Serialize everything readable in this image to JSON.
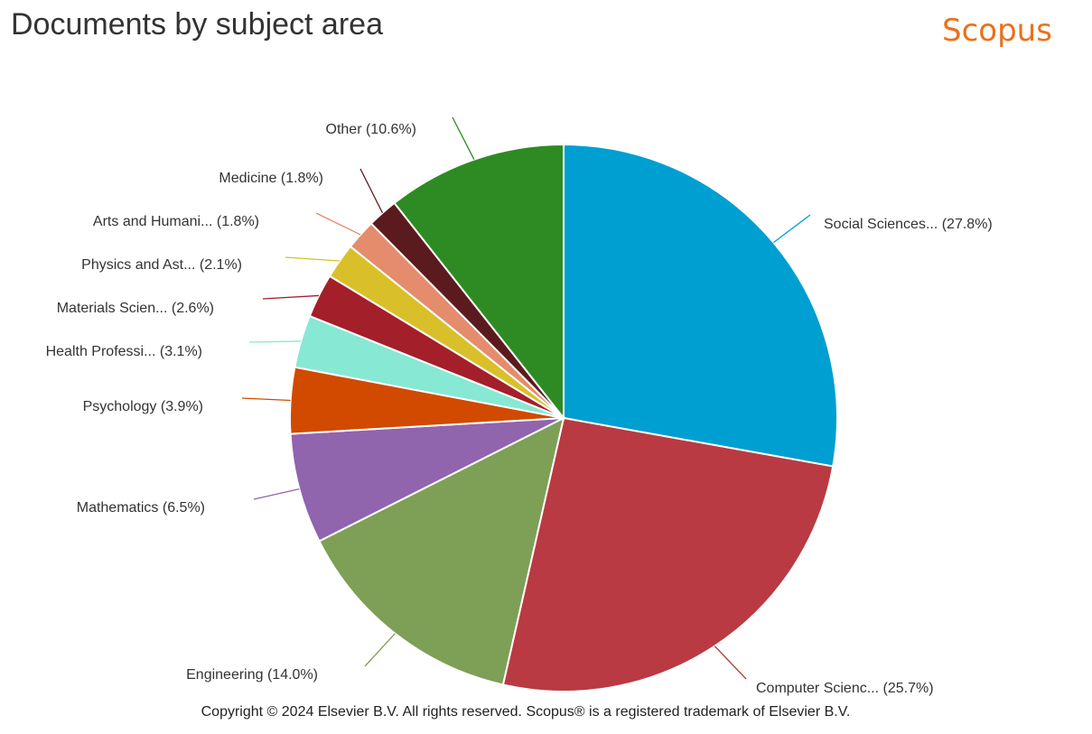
{
  "header": {
    "title": "Documents by subject area",
    "brand": "Scopus"
  },
  "footer": {
    "copyright": "Copyright © 2024 Elsevier B.V. All rights reserved. Scopus® is a registered trademark of Elsevier B.V."
  },
  "chart_data": {
    "type": "pie",
    "title": "Documents by subject area",
    "slices": [
      {
        "label": "Social Sciences... (27.8%)",
        "value": 27.8,
        "color": "#009fd1"
      },
      {
        "label": "Computer Scienc... (25.7%)",
        "value": 25.7,
        "color": "#b93a42"
      },
      {
        "label": "Engineering (14.0%)",
        "value": 14.0,
        "color": "#7e9f56"
      },
      {
        "label": "Mathematics (6.5%)",
        "value": 6.5,
        "color": "#9164ae"
      },
      {
        "label": "Psychology (3.9%)",
        "value": 3.9,
        "color": "#d14a00"
      },
      {
        "label": "Health Professi... (3.1%)",
        "value": 3.1,
        "color": "#87e8d3"
      },
      {
        "label": "Materials Scien... (2.6%)",
        "value": 2.6,
        "color": "#a31f2a"
      },
      {
        "label": "Physics and Ast... (2.1%)",
        "value": 2.1,
        "color": "#d9c02a"
      },
      {
        "label": "Arts and Humani... (1.8%)",
        "value": 1.8,
        "color": "#e48c6c"
      },
      {
        "label": "Medicine (1.8%)",
        "value": 1.8,
        "color": "#5b1a1e"
      },
      {
        "label": "Other (10.6%)",
        "value": 10.6,
        "color": "#2e8b24"
      }
    ]
  }
}
